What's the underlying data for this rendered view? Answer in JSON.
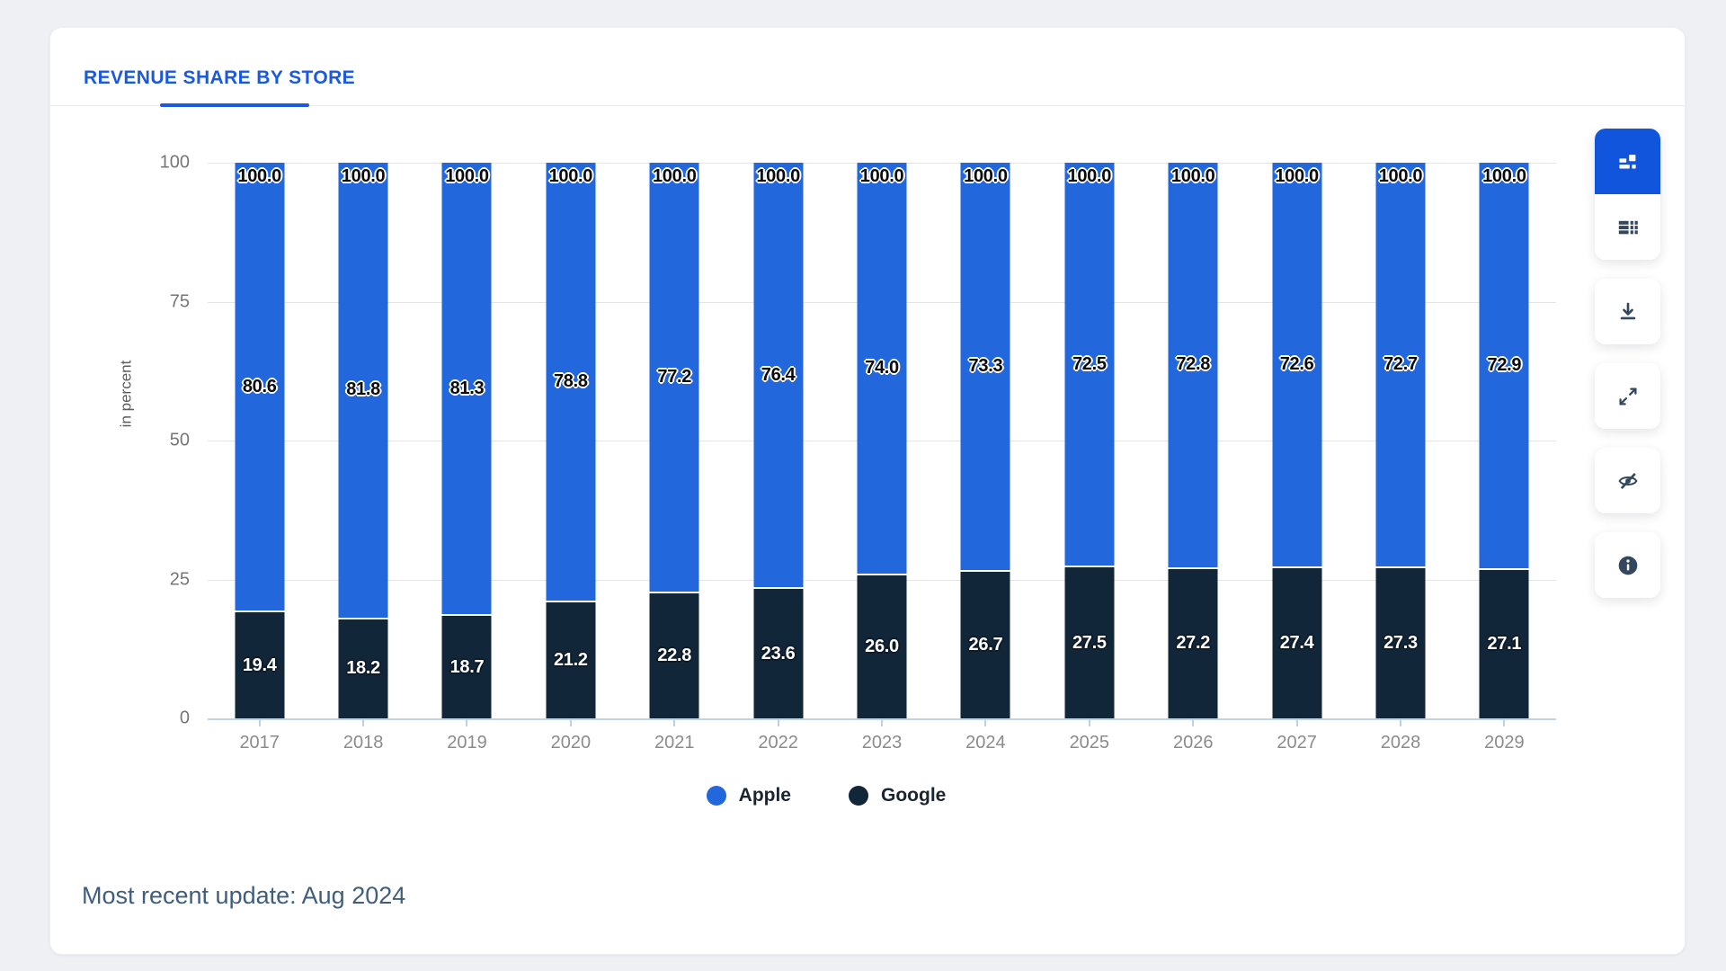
{
  "header": {
    "tab_label": "REVENUE SHARE BY STORE"
  },
  "chart_data": {
    "type": "bar",
    "stacked": true,
    "title": "REVENUE SHARE BY STORE",
    "categories": [
      "2017",
      "2018",
      "2019",
      "2020",
      "2021",
      "2022",
      "2023",
      "2024",
      "2025",
      "2026",
      "2027",
      "2028",
      "2029"
    ],
    "series": [
      {
        "name": "Apple",
        "color": "#2267db",
        "values": [
          80.6,
          81.8,
          81.3,
          78.8,
          77.2,
          76.4,
          74.0,
          73.3,
          72.5,
          72.8,
          72.6,
          72.7,
          72.9
        ]
      },
      {
        "name": "Google",
        "color": "#122639",
        "values": [
          19.4,
          18.2,
          18.7,
          21.2,
          22.8,
          23.6,
          26.0,
          26.7,
          27.5,
          27.2,
          27.4,
          27.3,
          27.1
        ]
      }
    ],
    "totals": [
      100.0,
      100.0,
      100.0,
      100.0,
      100.0,
      100.0,
      100.0,
      100.0,
      100.0,
      100.0,
      100.0,
      100.0,
      100.0
    ],
    "xlabel": "",
    "ylabel": "in percent",
    "yticks": [
      0,
      25,
      50,
      75,
      100
    ],
    "ylim": [
      0,
      100
    ],
    "grid": true,
    "legend_position": "bottom"
  },
  "toolbar": {
    "groups": [
      {
        "buttons": [
          {
            "name": "chart-view",
            "icon": "chart-blocks-icon",
            "active": true
          },
          {
            "name": "table-view",
            "icon": "table-icon",
            "active": false
          }
        ]
      },
      {
        "buttons": [
          {
            "name": "download",
            "icon": "download-icon",
            "active": false
          }
        ]
      },
      {
        "buttons": [
          {
            "name": "fullscreen",
            "icon": "expand-icon",
            "active": false
          }
        ]
      },
      {
        "buttons": [
          {
            "name": "hide-chart",
            "icon": "eye-off-icon",
            "active": false
          }
        ]
      },
      {
        "buttons": [
          {
            "name": "info",
            "icon": "info-icon",
            "active": false
          }
        ]
      }
    ]
  },
  "footer": {
    "update_text": "Most recent update: Aug 2024"
  },
  "colors": {
    "accent_blue": "#1b59df",
    "toolbar_active": "#1155dd",
    "apple_bar": "#2267db",
    "google_bar": "#122639",
    "axis_line": "#c3d4e8",
    "gridline": "#e4e4e4",
    "footer_text": "#3f5e7e"
  }
}
